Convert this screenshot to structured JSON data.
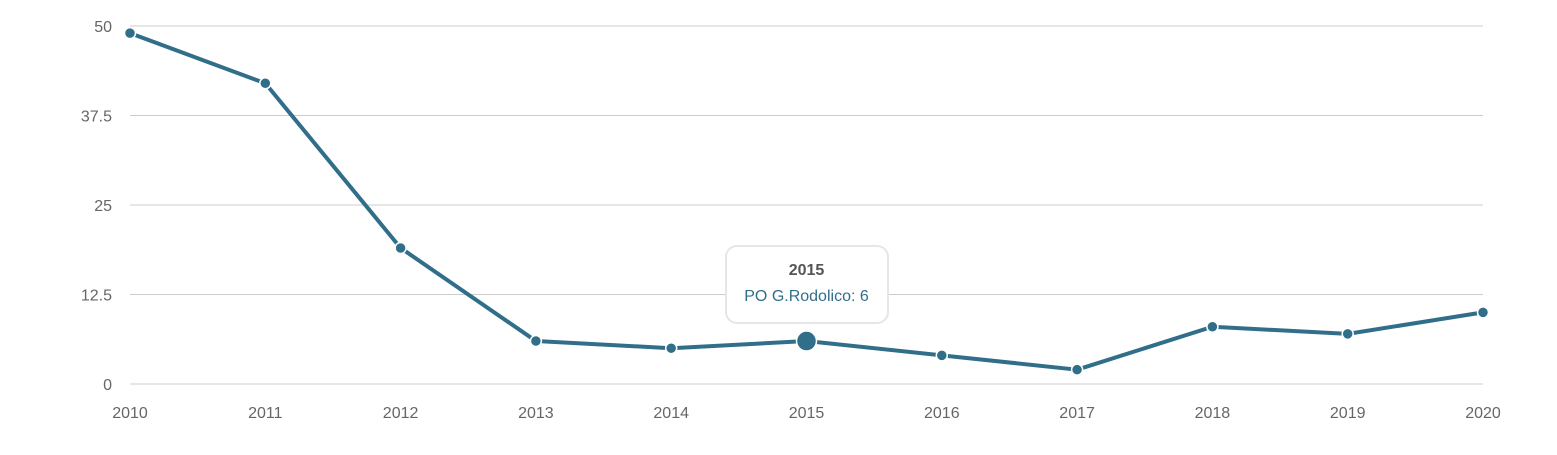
{
  "chart_data": {
    "type": "line",
    "x": [
      "2010",
      "2011",
      "2012",
      "2013",
      "2014",
      "2015",
      "2016",
      "2017",
      "2018",
      "2019",
      "2020"
    ],
    "series": [
      {
        "name": "PO G.Rodolico",
        "values": [
          49,
          42,
          19,
          6,
          5,
          6,
          4,
          2,
          8,
          7,
          10
        ]
      }
    ],
    "yticks": [
      "0",
      "12.5",
      "25",
      "37.5",
      "50"
    ],
    "ylim": [
      0,
      50
    ],
    "grid": true,
    "line_color": "#316e8a",
    "highlighted_index": 5
  },
  "tooltip": {
    "title": "2015",
    "body": "PO G.Rodolico: 6"
  }
}
